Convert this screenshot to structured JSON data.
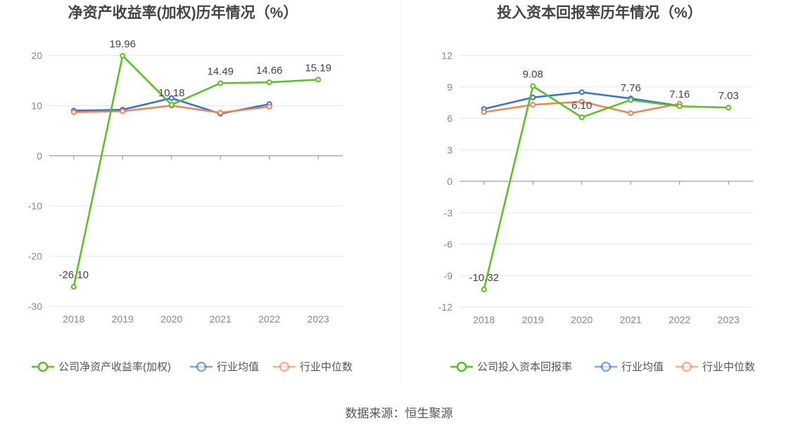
{
  "source": "数据来源：恒生聚源",
  "colors": {
    "company": "#52c41a",
    "avg": "#2f6fe4",
    "median": "#f5814f"
  },
  "chart_data": [
    {
      "type": "line",
      "title": "净资产收益率(加权)历年情况（%）",
      "categories": [
        "2018",
        "2019",
        "2020",
        "2021",
        "2022",
        "2023"
      ],
      "ylim": [
        -30,
        20
      ],
      "yticks": [
        20,
        10,
        0,
        -10,
        -20,
        -30
      ],
      "grid": true,
      "legend": "bottom",
      "series": [
        {
          "name": "公司净资产收益率(加权)",
          "values": [
            -26.1,
            19.96,
            10.18,
            14.49,
            14.66,
            15.19
          ],
          "labels": [
            "-26.10",
            "19.96",
            "10.18",
            "14.49",
            "14.66",
            "15.19"
          ]
        },
        {
          "name": "行业均值",
          "values": [
            9.0,
            9.2,
            11.5,
            8.4,
            10.3,
            null
          ]
        },
        {
          "name": "行业中位数",
          "values": [
            8.7,
            8.9,
            10.0,
            8.6,
            9.8,
            null
          ]
        }
      ]
    },
    {
      "type": "line",
      "title": "投入资本回报率历年情况（%）",
      "categories": [
        "2018",
        "2019",
        "2020",
        "2021",
        "2022",
        "2023"
      ],
      "ylim": [
        -12,
        12
      ],
      "yticks": [
        12,
        9,
        6,
        3,
        0,
        -3,
        -6,
        -9,
        -12
      ],
      "grid": true,
      "legend": "bottom",
      "series": [
        {
          "name": "公司投入资本回报率",
          "values": [
            -10.32,
            9.08,
            6.1,
            7.76,
            7.16,
            7.03
          ],
          "labels": [
            "-10.32",
            "9.08",
            "6.10",
            "7.76",
            "7.16",
            "7.03"
          ]
        },
        {
          "name": "行业均值",
          "values": [
            6.9,
            8.0,
            8.5,
            7.9,
            7.2,
            null
          ]
        },
        {
          "name": "行业中位数",
          "values": [
            6.6,
            7.3,
            7.6,
            6.5,
            7.4,
            null
          ]
        }
      ]
    }
  ]
}
